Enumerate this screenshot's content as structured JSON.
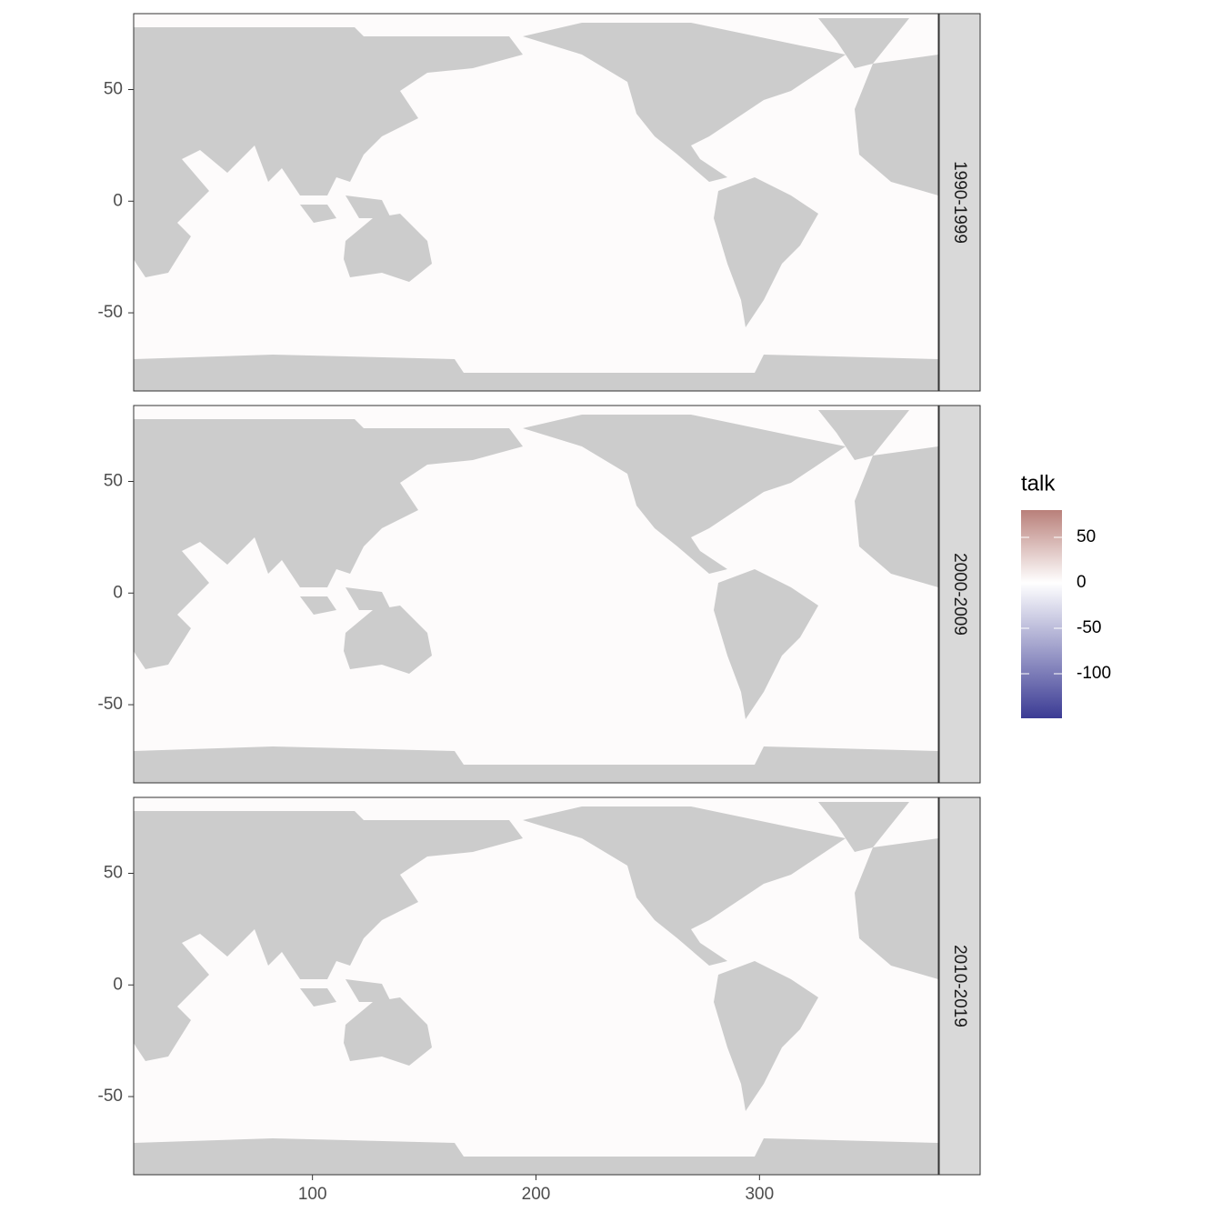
{
  "chart_data": {
    "type": "heatmap",
    "facets": [
      "1990-1999",
      "2000-2009",
      "2010-2019"
    ],
    "xlim": [
      20,
      380
    ],
    "xticks": [
      100,
      200,
      300
    ],
    "ylim": [
      -85,
      84
    ],
    "yticks": [
      50,
      0,
      -50
    ],
    "legend": {
      "title": "talk",
      "ticks": [
        50,
        0,
        -50,
        -100
      ],
      "limits": [
        -149,
        80
      ],
      "midpoint": 0,
      "colors": [
        "#3b3b94",
        "#ffffff",
        "#b9807a"
      ]
    }
  }
}
